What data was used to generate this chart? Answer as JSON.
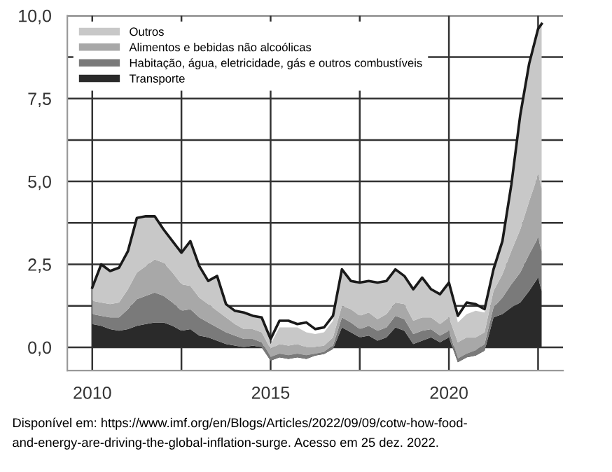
{
  "chart_data": {
    "type": "area",
    "stacked": true,
    "x": [
      2010.0,
      2010.25,
      2010.5,
      2010.75,
      2011.0,
      2011.25,
      2011.5,
      2011.75,
      2012.0,
      2012.25,
      2012.5,
      2012.75,
      2013.0,
      2013.25,
      2013.5,
      2013.75,
      2014.0,
      2014.25,
      2014.5,
      2014.75,
      2015.0,
      2015.25,
      2015.5,
      2015.75,
      2016.0,
      2016.25,
      2016.5,
      2016.75,
      2017.0,
      2017.25,
      2017.5,
      2017.75,
      2018.0,
      2018.25,
      2018.5,
      2018.75,
      2019.0,
      2019.25,
      2019.5,
      2019.75,
      2020.0,
      2020.25,
      2020.5,
      2020.75,
      2021.0,
      2021.25,
      2021.5,
      2021.75,
      2022.0,
      2022.25,
      2022.5,
      2022.6
    ],
    "series": [
      {
        "name": "Transporte",
        "color": "#2a2a2a",
        "values": [
          0.7,
          0.65,
          0.55,
          0.5,
          0.55,
          0.65,
          0.7,
          0.75,
          0.75,
          0.65,
          0.5,
          0.55,
          0.35,
          0.3,
          0.2,
          0.1,
          0.05,
          0.0,
          0.05,
          0.0,
          -0.4,
          -0.3,
          -0.35,
          -0.3,
          -0.35,
          -0.25,
          -0.2,
          -0.05,
          0.6,
          0.45,
          0.3,
          0.35,
          0.2,
          0.3,
          0.6,
          0.5,
          0.1,
          0.2,
          0.3,
          0.15,
          0.3,
          -0.45,
          -0.3,
          -0.25,
          -0.1,
          0.9,
          1.0,
          1.2,
          1.35,
          1.7,
          2.1,
          1.7
        ]
      },
      {
        "name": "Habitação, água, eletricidade, gás e outros combustíveis",
        "color": "#7a7a7a",
        "values": [
          0.3,
          0.3,
          0.35,
          0.4,
          0.6,
          0.8,
          0.85,
          0.9,
          0.8,
          0.7,
          0.6,
          0.6,
          0.55,
          0.45,
          0.4,
          0.35,
          0.3,
          0.25,
          0.2,
          0.15,
          0.1,
          0.1,
          0.1,
          0.1,
          0.1,
          0.05,
          0.05,
          0.1,
          0.3,
          0.3,
          0.25,
          0.3,
          0.3,
          0.3,
          0.35,
          0.35,
          0.3,
          0.3,
          0.25,
          0.2,
          0.2,
          0.1,
          0.1,
          0.15,
          0.2,
          0.3,
          0.5,
          0.7,
          0.9,
          1.1,
          1.2,
          1.2
        ]
      },
      {
        "name": "Alimentos e bebidas não alcoólicas",
        "color": "#a8a8a8",
        "values": [
          0.4,
          0.4,
          0.4,
          0.45,
          0.6,
          0.8,
          0.9,
          1.0,
          1.0,
          0.9,
          0.8,
          0.7,
          0.6,
          0.55,
          0.5,
          0.45,
          0.35,
          0.3,
          0.3,
          0.3,
          0.25,
          0.3,
          0.3,
          0.3,
          0.25,
          0.2,
          0.2,
          0.25,
          0.35,
          0.4,
          0.4,
          0.4,
          0.35,
          0.4,
          0.4,
          0.45,
          0.4,
          0.4,
          0.35,
          0.35,
          0.4,
          0.5,
          0.5,
          0.4,
          0.35,
          0.5,
          0.7,
          1.0,
          1.3,
          1.6,
          1.9,
          1.9
        ]
      },
      {
        "name": "Outros",
        "color": "#c8c8c8",
        "values": [
          0.4,
          1.15,
          1.0,
          1.05,
          1.15,
          1.65,
          1.5,
          1.3,
          1.0,
          0.95,
          0.95,
          1.35,
          0.95,
          0.7,
          1.05,
          0.4,
          0.4,
          0.5,
          0.4,
          0.45,
          0.15,
          0.5,
          0.55,
          0.5,
          0.45,
          0.4,
          0.4,
          0.5,
          1.1,
          0.85,
          1.0,
          0.95,
          1.1,
          1.0,
          1.0,
          0.85,
          0.95,
          1.2,
          0.85,
          0.9,
          1.05,
          0.6,
          0.7,
          0.8,
          0.6,
          0.65,
          1.0,
          2.0,
          3.45,
          4.15,
          4.4,
          4.95
        ]
      },
      {
        "type": "line",
        "color": "#1a1a1a",
        "values": [
          1.8,
          2.5,
          2.3,
          2.4,
          2.9,
          3.9,
          3.95,
          3.95,
          3.55,
          3.2,
          2.85,
          3.2,
          2.45,
          2.0,
          2.15,
          1.3,
          1.1,
          1.05,
          0.95,
          0.9,
          0.25,
          0.8,
          0.8,
          0.7,
          0.75,
          0.55,
          0.6,
          0.95,
          2.35,
          2.0,
          1.95,
          2.0,
          1.95,
          2.0,
          2.35,
          2.15,
          1.75,
          2.1,
          1.75,
          1.6,
          1.95,
          0.95,
          1.35,
          1.3,
          1.15,
          2.35,
          3.2,
          4.9,
          7.0,
          8.55,
          9.6,
          9.75
        ]
      }
    ],
    "xlim": [
      2009.3,
      2023.2
    ],
    "xticks": [
      {
        "value": 2010,
        "label": "2010"
      },
      {
        "value": 2012.5,
        "label": null
      },
      {
        "value": 2015,
        "label": "2015"
      },
      {
        "value": 2017.5,
        "label": null
      },
      {
        "value": 2020,
        "label": "2020"
      },
      {
        "value": 2022.5,
        "label": null
      }
    ],
    "ylim": [
      -0.7,
      10.0
    ],
    "yticks": [
      {
        "value": 0,
        "label": "0,0"
      },
      {
        "value": 1.25,
        "label": null
      },
      {
        "value": 2.5,
        "label": "2,5"
      },
      {
        "value": 3.75,
        "label": null
      },
      {
        "value": 5,
        "label": "5,0"
      },
      {
        "value": 6.25,
        "label": null
      },
      {
        "value": 7.5,
        "label": "7,5"
      },
      {
        "value": 8.75,
        "label": null
      },
      {
        "value": 10,
        "label": "10,0"
      }
    ],
    "grid": true,
    "legend": "top left",
    "annotations": [
      "Disponível em: https://www.imf.org/en/Blogs/Articles/2022/09/09/cotw-how-food-",
      "and-energy-are-driving-the-global-inflation-surge. Acesso em 25 dez. 2022."
    ]
  }
}
